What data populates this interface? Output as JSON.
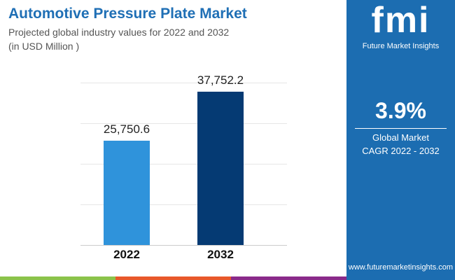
{
  "title": "Automotive Pressure Plate Market",
  "subtitle": "Projected global industry values for 2022 and 2032",
  "unit_note": "(in USD Million )",
  "brand": {
    "logo_text": "fmi",
    "name": "Future Market Insights",
    "url": "www.futuremarketinsights.com"
  },
  "cagr": {
    "value": "3.9%",
    "label1": "Global Market",
    "label2": "CAGR 2022 - 2032"
  },
  "colors": {
    "bar_2022": "#2f93db",
    "bar_2032": "#053a73",
    "panel": "#1c6db1",
    "stripes": [
      "#8bc34a",
      "#e8582a",
      "#8a2a8a",
      "#1c6db1"
    ]
  },
  "chart_data": {
    "type": "bar",
    "categories": [
      "2022",
      "2032"
    ],
    "values": [
      25750.6,
      37752.2
    ],
    "data_labels": [
      "25,750.6",
      "37,752.2"
    ],
    "title": "Automotive Pressure Plate Market",
    "ylim": [
      0,
      40000
    ],
    "grid": true
  }
}
